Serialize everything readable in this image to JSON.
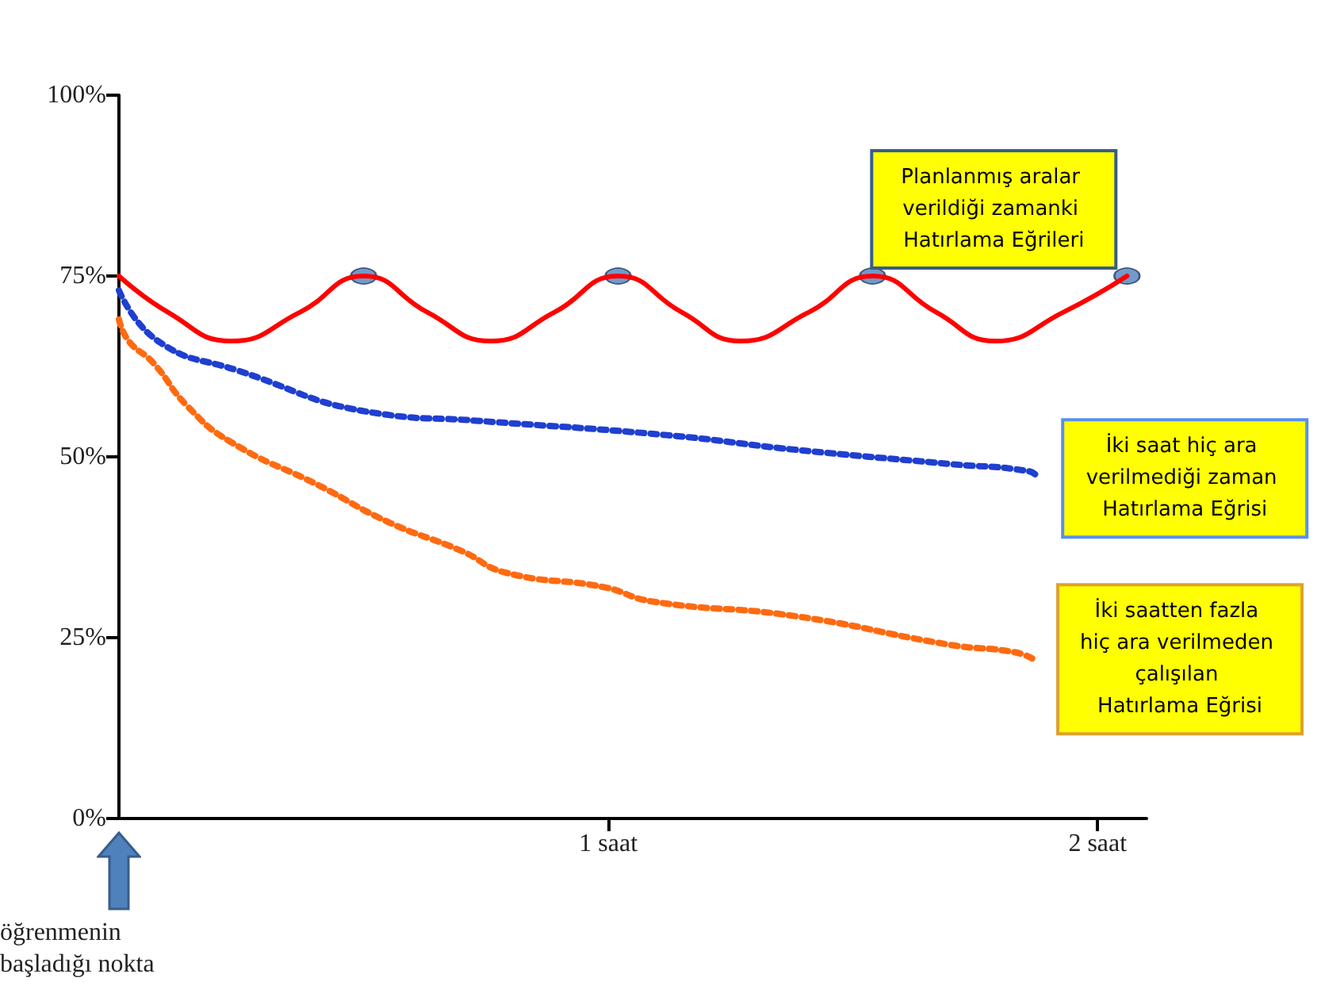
{
  "chart_data": {
    "type": "line",
    "xlim": [
      0,
      2.1
    ],
    "xticks": [
      {
        "value": 1,
        "label": "1 saat"
      },
      {
        "value": 2,
        "label": "2 saat"
      }
    ],
    "ylim": [
      0,
      100
    ],
    "yticks": [
      {
        "value": 0,
        "label": "0%"
      },
      {
        "value": 25,
        "label": "25%"
      },
      {
        "value": 50,
        "label": "50%"
      },
      {
        "value": 75,
        "label": "75%"
      },
      {
        "value": 100,
        "label": "100%"
      }
    ],
    "grid": false,
    "legend": false,
    "marker": "none",
    "annotations": [
      "öğrenmenin başladığı nokta"
    ],
    "series": [
      {
        "name": "Planlanmış aralar verildiği zamanki Hatırlama Eğrileri",
        "color": "#ff0000",
        "line_style": "solid",
        "x": [
          0,
          0.1,
          0.23,
          0.37,
          0.5,
          0.63,
          0.76,
          0.89,
          1.02,
          1.15,
          1.27,
          1.41,
          1.54,
          1.67,
          1.79,
          1.93,
          2.06
        ],
        "values": [
          75,
          70,
          66,
          70,
          75,
          70,
          66,
          70,
          75,
          70,
          66,
          70,
          75,
          70,
          66,
          70,
          75
        ]
      },
      {
        "name": "İki saat hiç ara verilmediği zaman Hatırlama Eğrisi",
        "color": "#1f3fd0",
        "line_style": "dotted",
        "x": [
          0,
          0.08,
          0.24,
          0.53,
          0.73,
          1.12,
          1.38,
          1.7,
          1.86,
          1.88
        ],
        "values": [
          73,
          66,
          62,
          56,
          55,
          53,
          51,
          49,
          48,
          47
        ]
      },
      {
        "name": "İki saatten fazla hiç ara verilmeden çalışılan Hatırlama Eğrisi",
        "color": "#ff6a10",
        "line_style": "dotted",
        "x": [
          0,
          0.02,
          0.07,
          0.14,
          0.23,
          0.41,
          0.55,
          0.7,
          0.79,
          0.99,
          1.09,
          1.38,
          1.7,
          1.83,
          1.87
        ],
        "values": [
          69,
          66,
          63,
          57,
          52,
          46,
          41,
          37,
          34,
          32,
          30,
          28,
          24,
          23,
          22
        ]
      },
      {
        "type": "scatter",
        "marker": "circle",
        "color": "#4f81bd",
        "x": [
          0.5,
          1.02,
          1.54,
          2.06
        ],
        "values": [
          75,
          75,
          75,
          75
        ]
      }
    ]
  }
}
